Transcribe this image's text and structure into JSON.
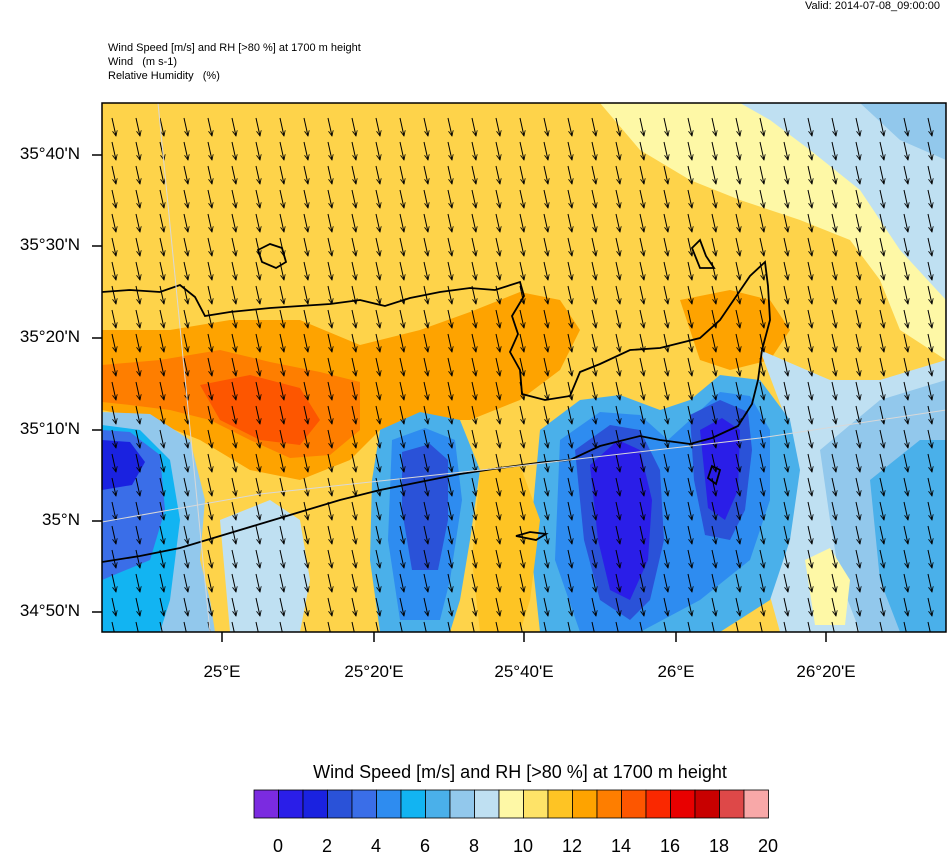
{
  "valid_time": "Valid: 2014-07-08_09:00:00",
  "header": {
    "line1": "Wind Speed [m/s] and RH [>80 %] at 1700 m height",
    "line2": "Wind   (m s-1)",
    "line3": "Relative Humidity   (%)"
  },
  "lat_labels": [
    "35°40'N",
    "35°30'N",
    "35°20'N",
    "35°10'N",
    "35°N",
    "34°50'N"
  ],
  "lon_labels": [
    "25°E",
    "25°20'E",
    "25°40'E",
    "26°E",
    "26°20'E"
  ],
  "colorbar": {
    "title": "Wind Speed [m/s] and RH [>80 %] at 1700 m height",
    "labels": [
      "0",
      "2",
      "4",
      "6",
      "8",
      "10",
      "12",
      "14",
      "16",
      "18",
      "20"
    ],
    "colors": [
      "#7b2be0",
      "#2a1ee8",
      "#1a22e0",
      "#2a52d8",
      "#3a6ee8",
      "#2e8cf0",
      "#12b4f2",
      "#4ab0ea",
      "#92c8ec",
      "#bfe0f2",
      "#fef8a6",
      "#fee368",
      "#fec424",
      "#fea300",
      "#fe7e00",
      "#fd5600",
      "#fa2800",
      "#e80000",
      "#c80000",
      "#de4848",
      "#f8a8a8"
    ]
  },
  "map": {
    "title": "Wind Speed [m/s] and RH [>80 %] at 1700 m height",
    "wind_direction": "north to south"
  }
}
